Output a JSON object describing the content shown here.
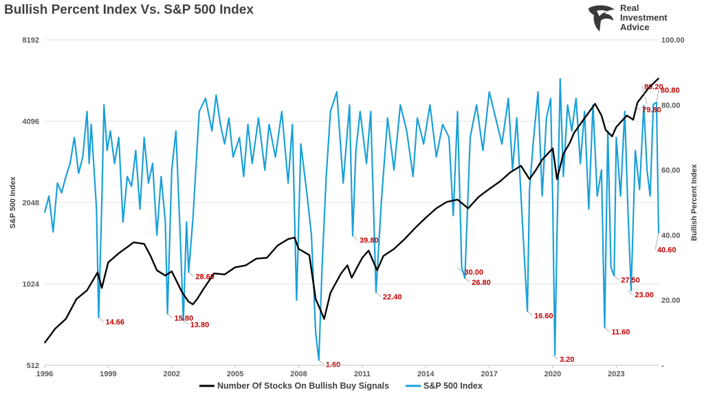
{
  "title": "Bullish Percent Index Vs. S&P 500 Index",
  "logo": {
    "lines": [
      "Real",
      "Investment",
      "Advice"
    ],
    "icon": "eagle-head-logo-icon"
  },
  "colors": {
    "sp500": "#1aa0d8",
    "bpi": "#000000",
    "annotation": "#c00000",
    "axis_text": "#595959"
  },
  "chart_data": {
    "type": "line",
    "title": "Bullish Percent Index Vs. S&P 500 Index",
    "x_axis": {
      "min": 1996.0,
      "max": 2025.0,
      "ticks": [
        1996,
        1999,
        2002,
        2005,
        2008,
        2011,
        2014,
        2017,
        2020,
        2023
      ],
      "tick_labels": [
        "1996",
        "1999",
        "2002",
        "2005",
        "2008",
        "2011",
        "2014",
        "2017",
        "2020",
        "2023"
      ]
    },
    "y_left": {
      "label": "S&P 500 Index",
      "scale": "log2",
      "min": 512,
      "max": 8192,
      "ticks": [
        512,
        1024,
        2048,
        4096,
        8192
      ],
      "tick_labels": [
        "512",
        "1024",
        "2048",
        "4096",
        "8192"
      ]
    },
    "y_right": {
      "label": "Bullish Percent Index",
      "min": 0,
      "max": 100,
      "ticks": [
        0,
        20,
        40,
        60,
        80,
        100
      ],
      "tick_labels": [
        "-",
        "20.00",
        "40.00",
        "60.00",
        "80.00",
        "100.00"
      ]
    },
    "legend": {
      "position": "bottom",
      "entries": [
        "Number Of Stocks On Bullish Buy Signals",
        "S&P 500 Index"
      ]
    },
    "series": [
      {
        "key": "bpi",
        "legend": "Number Of Stocks On Bullish Buy Signals",
        "axis": "left",
        "color": "#000000",
        "x": [
          1996.0,
          1996.5,
          1997.0,
          1997.5,
          1998.0,
          1998.5,
          1998.7,
          1999.0,
          1999.5,
          2000.0,
          2000.2,
          2000.7,
          2001.0,
          2001.3,
          2001.7,
          2002.0,
          2002.5,
          2002.8,
          2003.0,
          2003.2,
          2003.5,
          2004.0,
          2004.5,
          2005.0,
          2005.5,
          2006.0,
          2006.5,
          2007.0,
          2007.5,
          2007.8,
          2008.0,
          2008.5,
          2008.8,
          2009.0,
          2009.2,
          2009.5,
          2010.0,
          2010.3,
          2010.5,
          2011.0,
          2011.3,
          2011.7,
          2012.0,
          2012.5,
          2013.0,
          2013.5,
          2014.0,
          2014.5,
          2015.0,
          2015.5,
          2016.0,
          2016.5,
          2017.0,
          2017.5,
          2018.0,
          2018.5,
          2018.9,
          2019.2,
          2019.5,
          2020.0,
          2020.2,
          2020.5,
          2020.8,
          2021.0,
          2021.5,
          2022.0,
          2022.3,
          2022.5,
          2022.8,
          2023.0,
          2023.5,
          2023.8,
          2024.0,
          2024.5,
          2024.8,
          2025.0
        ],
        "y": [
          620,
          700,
          760,
          900,
          970,
          1130,
          990,
          1230,
          1330,
          1420,
          1460,
          1440,
          1300,
          1150,
          1100,
          1140,
          950,
          880,
          860,
          900,
          980,
          1120,
          1110,
          1180,
          1200,
          1270,
          1280,
          1420,
          1500,
          1520,
          1380,
          1310,
          900,
          830,
          760,
          950,
          1120,
          1200,
          1080,
          1280,
          1360,
          1150,
          1300,
          1380,
          1500,
          1650,
          1800,
          1950,
          2060,
          2100,
          1950,
          2150,
          2300,
          2450,
          2650,
          2800,
          2500,
          2700,
          2950,
          3250,
          2500,
          3100,
          3400,
          3700,
          4200,
          4750,
          4300,
          3800,
          3600,
          3900,
          4300,
          4150,
          4800,
          5400,
          5700,
          5900
        ]
      },
      {
        "key": "sp500",
        "legend": "S&P 500 Index",
        "axis": "right",
        "color": "#1aa0d8",
        "x": [
          1996.0,
          1996.2,
          1996.4,
          1996.6,
          1996.8,
          1997.0,
          1997.2,
          1997.4,
          1997.6,
          1997.8,
          1998.0,
          1998.1,
          1998.2,
          1998.45,
          1998.55,
          1998.7,
          1998.8,
          1998.95,
          1999.1,
          1999.3,
          1999.5,
          1999.7,
          1999.9,
          2000.1,
          2000.3,
          2000.5,
          2000.7,
          2000.9,
          2001.1,
          2001.3,
          2001.5,
          2001.7,
          2001.8,
          2002.0,
          2002.2,
          2002.4,
          2002.55,
          2002.7,
          2002.8,
          2003.0,
          2003.3,
          2003.6,
          2003.9,
          2004.1,
          2004.3,
          2004.5,
          2004.7,
          2004.9,
          2005.2,
          2005.4,
          2005.6,
          2005.8,
          2006.1,
          2006.4,
          2006.6,
          2006.9,
          2007.2,
          2007.5,
          2007.7,
          2007.9,
          2008.1,
          2008.4,
          2008.6,
          2008.8,
          2008.95,
          2009.1,
          2009.3,
          2009.5,
          2009.8,
          2010.1,
          2010.4,
          2010.55,
          2010.7,
          2010.9,
          2011.2,
          2011.4,
          2011.5,
          2011.65,
          2011.9,
          2012.2,
          2012.5,
          2012.8,
          2013.1,
          2013.4,
          2013.6,
          2013.9,
          2014.2,
          2014.5,
          2014.8,
          2015.1,
          2015.3,
          2015.5,
          2015.7,
          2015.85,
          2016.1,
          2016.4,
          2016.7,
          2017.0,
          2017.3,
          2017.6,
          2017.9,
          2018.1,
          2018.3,
          2018.6,
          2018.8,
          2018.9,
          2019.1,
          2019.3,
          2019.5,
          2019.7,
          2019.9,
          2020.0,
          2020.1,
          2020.2,
          2020.35,
          2020.5,
          2020.7,
          2020.9,
          2021.1,
          2021.3,
          2021.5,
          2021.7,
          2021.9,
          2022.1,
          2022.3,
          2022.45,
          2022.6,
          2022.75,
          2022.9,
          2023.0,
          2023.2,
          2023.4,
          2023.55,
          2023.7,
          2023.9,
          2024.1,
          2024.3,
          2024.45,
          2024.6,
          2024.75,
          2024.9,
          2025.0
        ],
        "y": [
          47,
          52,
          41,
          56,
          53,
          58,
          62,
          70,
          59,
          64,
          78,
          62,
          74,
          48,
          14.66,
          50,
          80,
          66,
          72,
          62,
          70,
          44,
          58,
          55,
          66,
          48,
          70,
          56,
          62,
          40,
          58,
          44,
          15.8,
          60,
          72,
          40,
          13.8,
          44,
          28.6,
          45,
          78,
          82,
          72,
          83,
          74,
          68,
          76,
          64,
          70,
          58,
          74,
          62,
          76,
          60,
          74,
          64,
          78,
          56,
          74,
          20,
          68,
          52,
          40,
          10,
          1.6,
          30,
          58,
          78,
          84,
          56,
          80,
          39.8,
          66,
          78,
          62,
          78,
          56,
          22.4,
          50,
          76,
          60,
          80,
          72,
          58,
          76,
          68,
          80,
          64,
          74,
          70,
          46,
          78,
          30,
          26.8,
          70,
          80,
          66,
          84,
          76,
          68,
          82,
          60,
          76,
          40,
          16.6,
          54,
          70,
          84,
          52,
          76,
          82,
          50,
          3.2,
          40,
          88,
          58,
          80,
          72,
          82,
          62,
          78,
          48,
          80,
          52,
          60,
          11.6,
          72,
          30,
          27.5,
          70,
          52,
          78,
          48,
          23.0,
          66,
          54,
          79.8,
          60,
          52,
          80.2,
          80.8,
          40.6
        ]
      }
    ],
    "annotations": [
      {
        "x": 1998.55,
        "y": 14.66,
        "label": "14.66"
      },
      {
        "x": 2001.8,
        "y": 15.8,
        "label": "15.80"
      },
      {
        "x": 2002.55,
        "y": 13.8,
        "label": "13.80"
      },
      {
        "x": 2002.8,
        "y": 28.6,
        "label": "28.60"
      },
      {
        "x": 2008.95,
        "y": 1.6,
        "label": "1.60"
      },
      {
        "x": 2010.55,
        "y": 39.8,
        "label": "39.80"
      },
      {
        "x": 2011.65,
        "y": 22.4,
        "label": "22.40"
      },
      {
        "x": 2015.5,
        "y": 30.0,
        "label": "30.00"
      },
      {
        "x": 2015.85,
        "y": 26.8,
        "label": "26.80"
      },
      {
        "x": 2018.8,
        "y": 16.6,
        "label": "16.60"
      },
      {
        "x": 2020.0,
        "y": 3.2,
        "label": "3.20"
      },
      {
        "x": 2022.45,
        "y": 11.6,
        "label": "11.60"
      },
      {
        "x": 2022.9,
        "y": 27.5,
        "label": "27.50"
      },
      {
        "x": 2023.55,
        "y": 23.0,
        "label": "23.00"
      },
      {
        "x": 2023.9,
        "y": 79.8,
        "label": "79.80"
      },
      {
        "x": 2024.45,
        "y": 80.2,
        "label": "80.20"
      },
      {
        "x": 2024.9,
        "y": 80.8,
        "label": "80.80"
      },
      {
        "x": 2025.0,
        "y": 40.6,
        "label": "40.60"
      }
    ]
  }
}
